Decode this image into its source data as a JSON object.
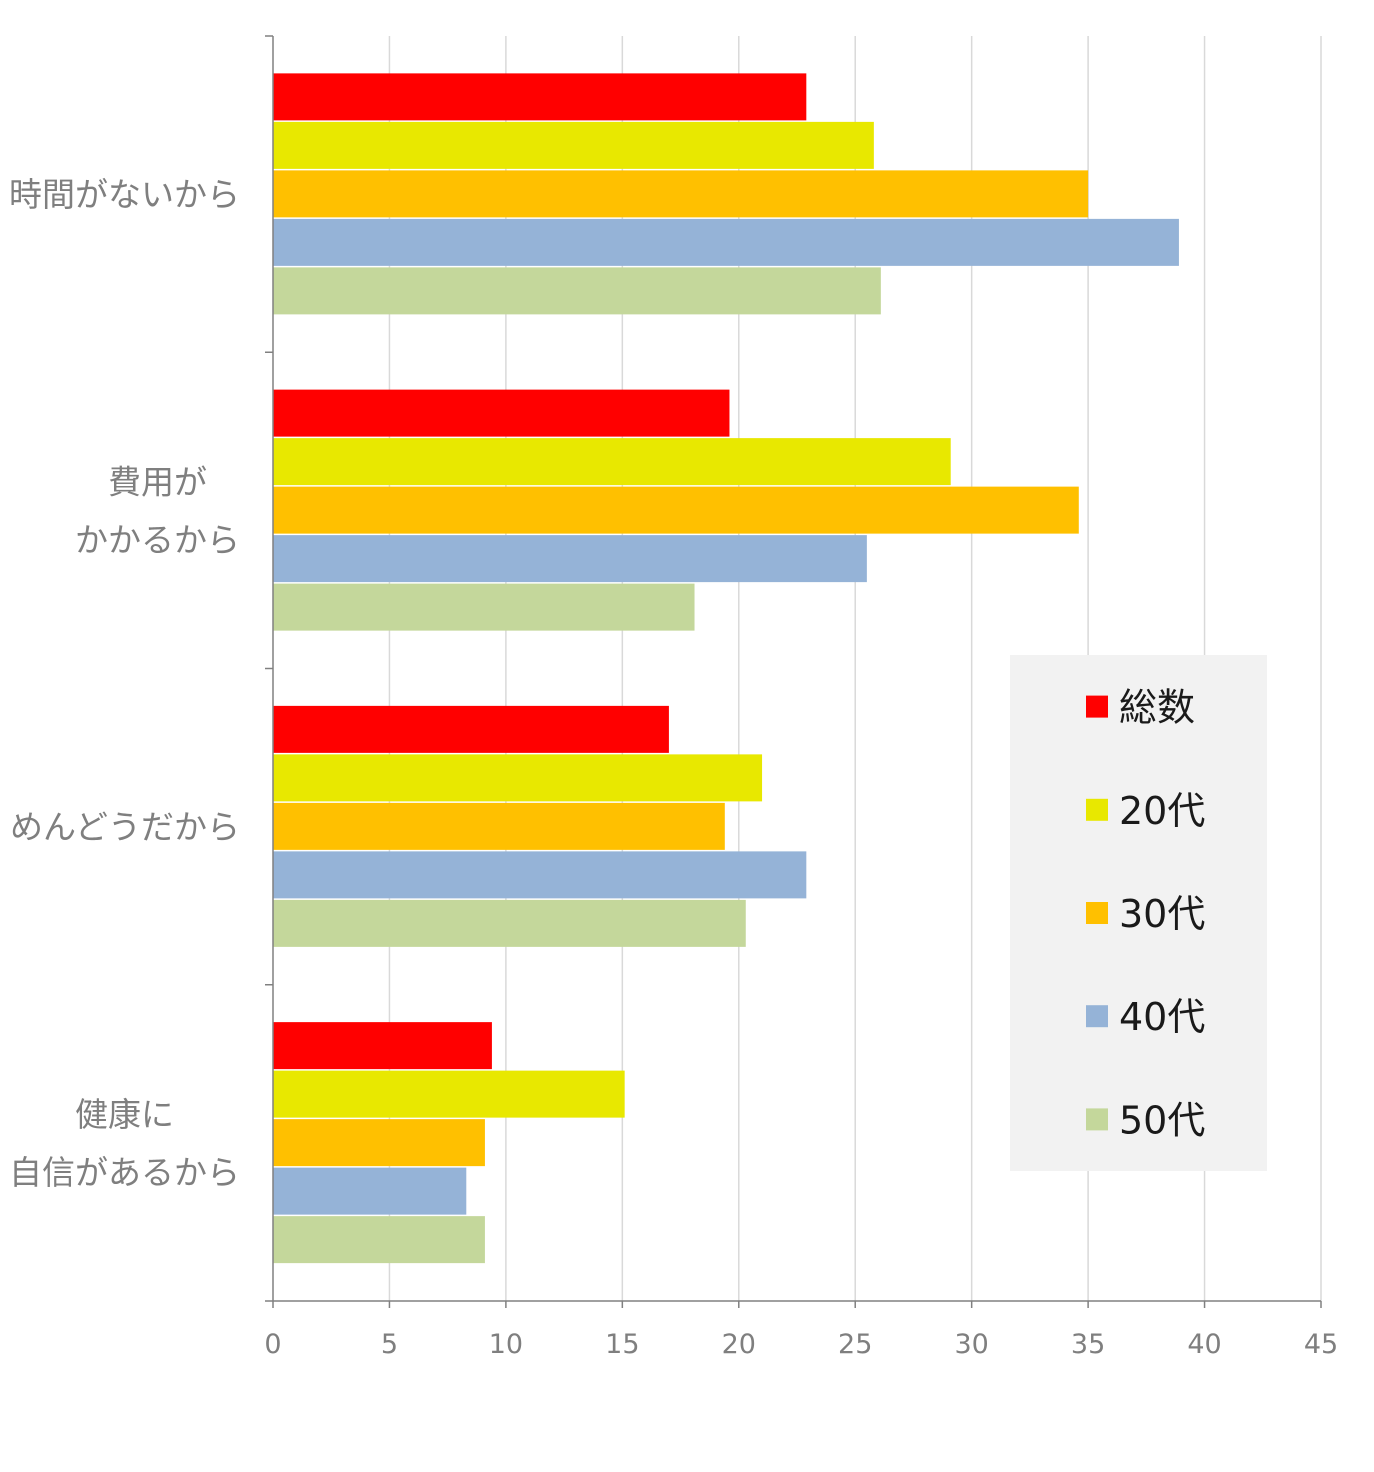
{
  "chart_data": {
    "type": "bar",
    "orientation": "horizontal",
    "categories": [
      [
        "時間がないから"
      ],
      [
        "費用が",
        "かかるから"
      ],
      [
        "めんどうだから"
      ],
      [
        "健康に",
        "自信があるから"
      ]
    ],
    "series": [
      {
        "name": "総数",
        "color": "#ff0000",
        "values": [
          22.9,
          19.6,
          17.0,
          9.4
        ]
      },
      {
        "name": "20代",
        "color": "#e8e800",
        "values": [
          25.8,
          29.1,
          21.0,
          15.1
        ]
      },
      {
        "name": "30代",
        "color": "#ffc000",
        "values": [
          35.0,
          34.6,
          19.4,
          9.1
        ]
      },
      {
        "name": "40代",
        "color": "#95b3d7",
        "values": [
          38.9,
          25.5,
          22.9,
          8.3
        ]
      },
      {
        "name": "50代",
        "color": "#c4d79b",
        "values": [
          26.1,
          18.1,
          20.3,
          9.1
        ]
      }
    ],
    "xlim": [
      0,
      45
    ],
    "xticks": [
      0,
      5,
      10,
      15,
      20,
      25,
      30,
      35,
      40,
      45
    ],
    "grid": "vertical",
    "legend_position": "right",
    "xlabel": "",
    "ylabel": "",
    "title": ""
  }
}
